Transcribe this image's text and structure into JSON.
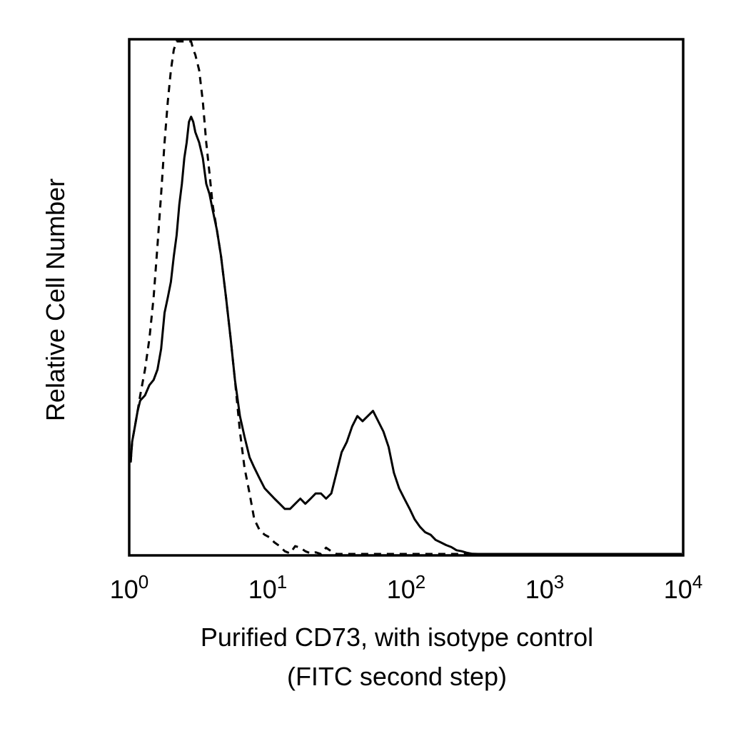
{
  "chart_data": {
    "type": "line",
    "title": "",
    "xlabel_line1": "Purified CD73, with isotype control",
    "xlabel_line2": "(FITC second step)",
    "ylabel": "Relative Cell Number",
    "x_scale": "log",
    "xlim": [
      1,
      10000
    ],
    "ylim": [
      0,
      100
    ],
    "grid": false,
    "legend": "none",
    "x_ticks": [
      {
        "value": 1,
        "base": "10",
        "exp": "0"
      },
      {
        "value": 10,
        "base": "10",
        "exp": "1"
      },
      {
        "value": 100,
        "base": "10",
        "exp": "2"
      },
      {
        "value": 1000,
        "base": "10",
        "exp": "3"
      },
      {
        "value": 10000,
        "base": "10",
        "exp": "4"
      }
    ],
    "series": [
      {
        "style": "solid",
        "color": "#000000",
        "x": [
          1.0,
          1.05,
          1.1,
          1.15,
          1.2,
          1.3,
          1.4,
          1.5,
          1.6,
          1.7,
          1.8,
          1.9,
          2.0,
          2.1,
          2.2,
          2.3,
          2.4,
          2.5,
          2.6,
          2.7,
          2.8,
          2.9,
          3.0,
          3.2,
          3.4,
          3.6,
          3.8,
          4.0,
          4.3,
          4.6,
          5.0,
          5.4,
          5.8,
          6.3,
          6.8,
          7.4,
          8.0,
          8.7,
          9.5,
          10.3,
          11.2,
          12.2,
          13.3,
          14.5,
          15.8,
          17.2,
          18.7,
          20.4,
          22.2,
          24.2,
          26.4,
          28.8,
          31.4,
          34.2,
          37.3,
          40.7,
          44.4,
          48.4,
          52.8,
          57.6,
          62.8,
          68.5,
          74.7,
          81.5,
          88.9,
          97.0,
          106,
          115,
          126,
          137,
          150,
          163,
          178,
          194,
          212,
          231,
          252,
          275,
          300,
          330,
          380,
          450,
          520,
          10000
        ],
        "y": [
          18,
          22,
          25,
          28,
          30,
          31,
          33,
          34,
          36,
          40,
          47,
          50,
          53,
          58,
          62,
          68,
          72,
          77,
          80,
          84,
          85,
          84,
          82,
          80,
          77,
          72,
          70,
          67,
          63,
          58,
          50,
          42,
          34,
          27,
          23,
          19,
          17,
          15,
          13,
          12,
          11,
          10,
          9,
          9,
          10,
          11,
          10,
          11,
          12,
          12,
          11,
          12,
          16,
          20,
          22,
          25,
          27,
          26,
          27,
          28,
          26,
          24,
          21,
          16,
          13,
          11,
          9,
          7,
          5.5,
          4.5,
          4,
          3,
          2.5,
          2,
          1.6,
          1,
          0.8,
          0.5,
          0.3,
          0.2,
          0.1,
          0.1,
          0,
          0
        ]
      },
      {
        "style": "dashed",
        "color": "#000000",
        "x": [
          1.0,
          1.05,
          1.1,
          1.15,
          1.2,
          1.3,
          1.4,
          1.5,
          1.6,
          1.7,
          1.8,
          1.9,
          2.0,
          2.1,
          2.2,
          2.3,
          2.4,
          2.5,
          2.6,
          2.7,
          2.8,
          2.9,
          3.0,
          3.2,
          3.4,
          3.6,
          3.8,
          4.0,
          4.3,
          4.6,
          5.0,
          5.4,
          5.8,
          6.3,
          6.8,
          7.4,
          8.0,
          8.7,
          9.5,
          10.3,
          11.2,
          12.2,
          13.3,
          14.5,
          15.8,
          17.2,
          18.7,
          20.4,
          22.2,
          24.2,
          26.4,
          28.8,
          31.4,
          34.2,
          37.3,
          40.7,
          44.4,
          48.4,
          10000
        ],
        "y": [
          18,
          22,
          25,
          28,
          31,
          36,
          42,
          50,
          60,
          70,
          80,
          88,
          94,
          98,
          100,
          100,
          100,
          100,
          100,
          100,
          100,
          98,
          97,
          94,
          88,
          80,
          74,
          68,
          63,
          58,
          50,
          42,
          34,
          24,
          17,
          12,
          7,
          5,
          4,
          3.5,
          2.5,
          1.8,
          0.8,
          0.4,
          1.8,
          1.5,
          0.8,
          0.4,
          0.6,
          0.2,
          1.5,
          0.8,
          0.2,
          0.1,
          0,
          0,
          0,
          0,
          0
        ]
      }
    ]
  }
}
